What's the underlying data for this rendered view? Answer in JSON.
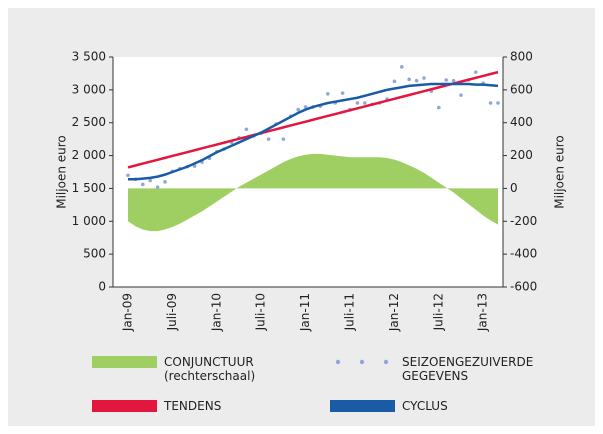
{
  "chart_data": {
    "type": "line",
    "y_label": "Miljoen euro",
    "y2_label": "Miljoen euro",
    "categories": [
      "Jan-09",
      null,
      null,
      null,
      null,
      null,
      "Juli-09",
      null,
      null,
      null,
      null,
      null,
      "Jan-10",
      null,
      null,
      null,
      null,
      null,
      "Juli-10",
      null,
      null,
      null,
      null,
      null,
      "Jan-11",
      null,
      null,
      null,
      null,
      null,
      "Juli-11",
      null,
      null,
      null,
      null,
      null,
      "Jan-12",
      null,
      null,
      null,
      null,
      null,
      "Juli-12",
      null,
      null,
      null,
      null,
      null,
      "Jan-13",
      null,
      null
    ],
    "ylim": [
      0,
      3500
    ],
    "yticks": [
      0,
      {
        "value": 500,
        "label": "500"
      },
      {
        "value": 1000,
        "label": "1 000"
      },
      {
        "value": 1500,
        "label": "1 500"
      },
      {
        "value": 2000,
        "label": "2 000"
      },
      {
        "value": 2500,
        "label": "2 500"
      },
      {
        "value": 3000,
        "label": "3 000"
      },
      {
        "value": 3500,
        "label": "3 500"
      }
    ],
    "y2lim": [
      -600,
      800
    ],
    "y2ticks": [
      -600,
      -400,
      -200,
      0,
      200,
      400,
      600,
      800
    ],
    "series": [
      {
        "name": "CONJUNCTUUR (rechterschaal)",
        "kind": "area",
        "axis": "y2",
        "color": "#9fcf63",
        "values": [
          -200,
          -230,
          -250,
          -260,
          -260,
          -250,
          -235,
          -215,
          -190,
          -165,
          -140,
          -110,
          -80,
          -50,
          -20,
          10,
          35,
          60,
          85,
          110,
          135,
          160,
          180,
          195,
          205,
          210,
          210,
          205,
          200,
          195,
          190,
          190,
          190,
          190,
          190,
          185,
          175,
          160,
          140,
          120,
          95,
          65,
          35,
          5,
          -25,
          -60,
          -95,
          -130,
          -165,
          -195,
          -220
        ]
      },
      {
        "name": "SEIZOENGEZUIVERDE GEGEVENS",
        "kind": "dots",
        "color": "#8fa8d8",
        "values": [
          1700,
          1640,
          1560,
          1620,
          1520,
          1600,
          1760,
          1800,
          1830,
          1840,
          1900,
          1960,
          2060,
          2100,
          2200,
          2270,
          2400,
          2300,
          2340,
          2250,
          2480,
          2250,
          2600,
          2700,
          2740,
          2740,
          2750,
          2940,
          2800,
          2950,
          2700,
          2800,
          2800,
          2780,
          2800,
          2860,
          3130,
          3350,
          3160,
          3140,
          3180,
          2980,
          2730,
          3150,
          3140,
          2920,
          3150,
          3270,
          3100,
          2800,
          2800
        ]
      },
      {
        "name": "TENDENS",
        "kind": "line",
        "color": "#e3173e",
        "values": [
          1820,
          1849,
          1878,
          1907,
          1936,
          1965,
          1994,
          2023,
          2052,
          2081,
          2110,
          2139,
          2168,
          2197,
          2226,
          2255,
          2284,
          2313,
          2342,
          2371,
          2400,
          2429,
          2458,
          2487,
          2516,
          2545,
          2574,
          2603,
          2632,
          2661,
          2690,
          2719,
          2748,
          2777,
          2806,
          2835,
          2864,
          2893,
          2922,
          2951,
          2980,
          3009,
          3038,
          3067,
          3096,
          3125,
          3154,
          3183,
          3212,
          3241,
          3270
        ]
      },
      {
        "name": "CYCLUS",
        "kind": "line",
        "color": "#1a5ba6",
        "values": [
          1640,
          1640,
          1650,
          1660,
          1680,
          1710,
          1750,
          1790,
          1830,
          1880,
          1930,
          1990,
          2050,
          2100,
          2150,
          2200,
          2250,
          2300,
          2350,
          2410,
          2470,
          2530,
          2590,
          2650,
          2700,
          2740,
          2770,
          2800,
          2820,
          2840,
          2860,
          2880,
          2910,
          2940,
          2970,
          3000,
          3020,
          3040,
          3060,
          3070,
          3080,
          3090,
          3090,
          3090,
          3090,
          3090,
          3090,
          3080,
          3080,
          3070,
          3060
        ]
      }
    ]
  }
}
